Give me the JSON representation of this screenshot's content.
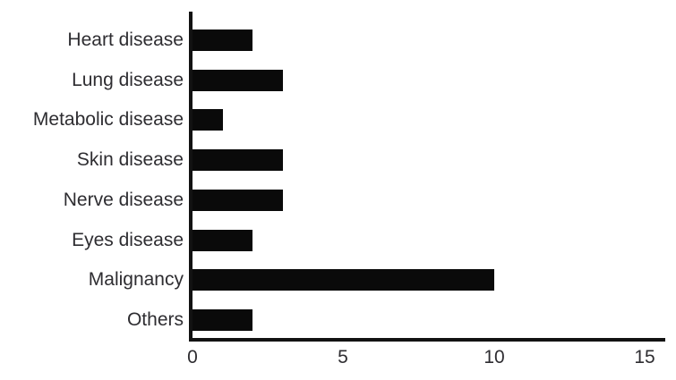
{
  "chart_data": {
    "type": "bar",
    "orientation": "horizontal",
    "title": "",
    "xlabel": "",
    "ylabel": "",
    "categories": [
      "Heart disease",
      "Lung disease",
      "Metabolic disease",
      "Skin disease",
      "Nerve disease",
      "Eyes disease",
      "Malignancy",
      "Others"
    ],
    "values": [
      2,
      3,
      1,
      3,
      3,
      2,
      10,
      2
    ],
    "xlim": [
      0,
      15
    ],
    "xticks": [
      0,
      5,
      10,
      15
    ],
    "grid": false,
    "legend": false,
    "bar_color": "#0a0a0a",
    "axis_color": "#121212",
    "text_color": "#2e2d31",
    "background": "#ffffff"
  }
}
